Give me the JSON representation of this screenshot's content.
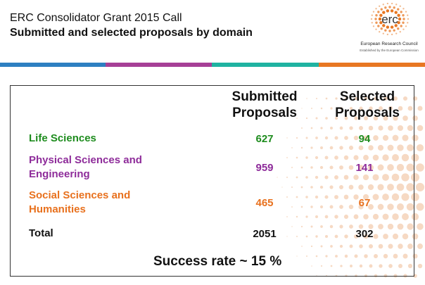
{
  "header": {
    "title_line1": "ERC Consolidator Grant 2015 Call",
    "title_line2": "Submitted and selected proposals by domain"
  },
  "logo": {
    "text": "erc",
    "name": "European Research Council",
    "subtitle": "Established by the European Commission",
    "accent_color": "#E87722"
  },
  "stripe_colors": [
    "#2D7FC1",
    "#A63F96",
    "#1FB3A1",
    "#E87722"
  ],
  "table": {
    "columns": [
      {
        "line1": "Submitted",
        "line2": "Proposals"
      },
      {
        "line1": "Selected",
        "line2": "Proposals"
      }
    ],
    "rows": [
      {
        "line1": "Life Sciences",
        "line2": "",
        "submitted": "627",
        "selected": "94",
        "color": "#1E8C1E"
      },
      {
        "line1": "Physical Sciences and",
        "line2": "Engineering",
        "submitted": "959",
        "selected": "141",
        "color": "#8E2C9A"
      },
      {
        "line1": "Social Sciences and",
        "line2": "Humanities",
        "submitted": "465",
        "selected": "67",
        "color": "#E8711E"
      },
      {
        "line1": "Total",
        "line2": "",
        "submitted": "2051",
        "selected": "302",
        "color": "#111111"
      }
    ]
  },
  "footer": {
    "success_rate": "Success rate ~ 15 %"
  }
}
